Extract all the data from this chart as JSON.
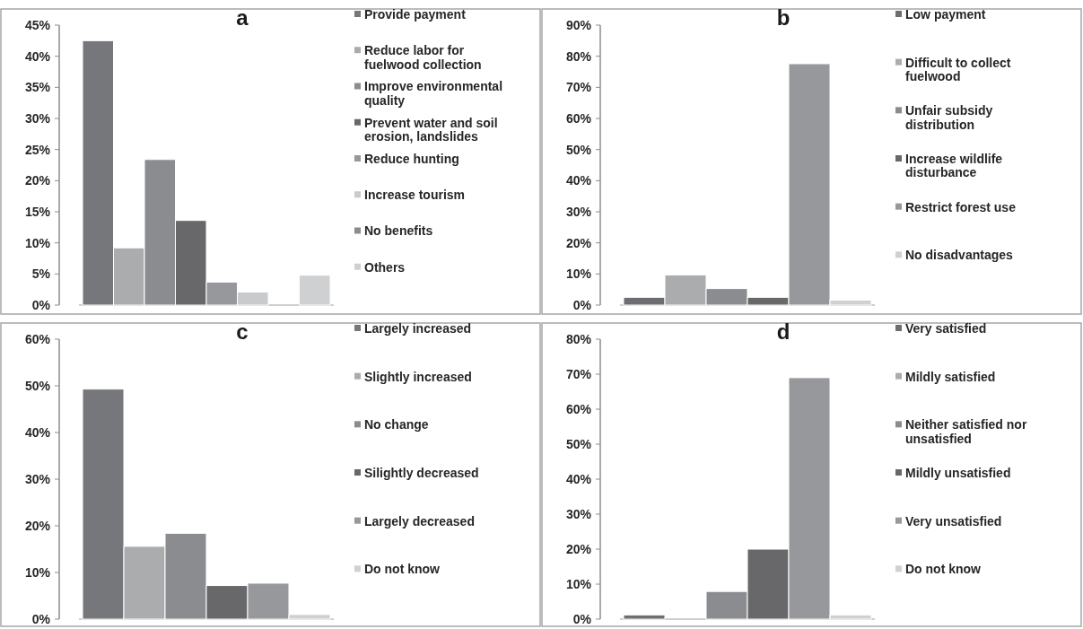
{
  "chart_data": [
    {
      "type": "bar",
      "title": "a",
      "categories": [
        null
      ],
      "legend": "right",
      "ylim": [
        0,
        45
      ],
      "yticks": [
        {
          "value": 0,
          "label": "0%"
        },
        {
          "value": 5,
          "label": "5%"
        },
        {
          "value": 10,
          "label": "10%"
        },
        {
          "value": 15,
          "label": "15%"
        },
        {
          "value": 20,
          "label": "20%"
        },
        {
          "value": 25,
          "label": "25%"
        },
        {
          "value": 30,
          "label": "30%"
        },
        {
          "value": 35,
          "label": "35%"
        },
        {
          "value": 40,
          "label": "40%"
        },
        {
          "value": 45,
          "label": "45%"
        }
      ],
      "series": [
        {
          "name": "Provide payment",
          "color": "#76777a",
          "values": [
            42.5
          ]
        },
        {
          "name": "Reduce labor for fuelwood collection",
          "color": "#abacae",
          "values": [
            9.2
          ]
        },
        {
          "name": "Improve environmental quality",
          "color": "#8b8c8f",
          "values": [
            23.4
          ]
        },
        {
          "name": "Prevent water and soil erosion, landslides",
          "color": "#68686a",
          "values": [
            13.6
          ]
        },
        {
          "name": "Reduce hunting",
          "color": "#97989b",
          "values": [
            3.7
          ]
        },
        {
          "name": "Increase tourism",
          "color": "#c9cacc",
          "values": [
            2.1
          ]
        },
        {
          "name": "No benefits",
          "color": "#8b8c8f",
          "values": [
            0
          ]
        },
        {
          "name": "Others",
          "color": "#cfd0d1",
          "values": [
            4.8
          ]
        }
      ]
    },
    {
      "type": "bar",
      "title": "b",
      "categories": [
        null
      ],
      "legend": "right",
      "ylim": [
        0,
        90
      ],
      "yticks": [
        {
          "value": 0,
          "label": "0%"
        },
        {
          "value": 10,
          "label": "10%"
        },
        {
          "value": 20,
          "label": "20%"
        },
        {
          "value": 30,
          "label": "30%"
        },
        {
          "value": 40,
          "label": "40%"
        },
        {
          "value": 50,
          "label": "50%"
        },
        {
          "value": 60,
          "label": "60%"
        },
        {
          "value": 70,
          "label": "70%"
        },
        {
          "value": 80,
          "label": "80%"
        },
        {
          "value": 90,
          "label": "90%"
        }
      ],
      "series": [
        {
          "name": "Low payment",
          "color": "#6d6e71",
          "values": [
            2.5
          ]
        },
        {
          "name": "Difficult to collect fuelwood",
          "color": "#abacae",
          "values": [
            9.7
          ]
        },
        {
          "name": "Unfair subsidy distribution",
          "color": "#8b8c8f",
          "values": [
            5.3
          ]
        },
        {
          "name": "Increase wildlife disturbance",
          "color": "#68686a",
          "values": [
            2.5
          ]
        },
        {
          "name": "Restrict forest use",
          "color": "#97989b",
          "values": [
            77.6
          ]
        },
        {
          "name": "No disadvantages",
          "color": "#cfd0d1",
          "values": [
            1.6
          ]
        }
      ]
    },
    {
      "type": "bar",
      "title": "c",
      "categories": [
        null
      ],
      "legend": "right",
      "ylim": [
        0,
        60
      ],
      "yticks": [
        {
          "value": 0,
          "label": "0%"
        },
        {
          "value": 10,
          "label": "10%"
        },
        {
          "value": 20,
          "label": "20%"
        },
        {
          "value": 30,
          "label": "30%"
        },
        {
          "value": 40,
          "label": "40%"
        },
        {
          "value": 50,
          "label": "50%"
        },
        {
          "value": 60,
          "label": "60%"
        }
      ],
      "series": [
        {
          "name": "Largely increased",
          "color": "#76777a",
          "values": [
            49.3
          ]
        },
        {
          "name": "Slightly increased",
          "color": "#abacae",
          "values": [
            15.6
          ]
        },
        {
          "name": "No change",
          "color": "#8b8c8f",
          "values": [
            18.4
          ]
        },
        {
          "name": "Silightly decreased",
          "color": "#68686a",
          "values": [
            7.2
          ]
        },
        {
          "name": "Largely decreased",
          "color": "#97989b",
          "values": [
            7.7
          ]
        },
        {
          "name": "Do not know",
          "color": "#cfd0d1",
          "values": [
            1.0
          ]
        }
      ]
    },
    {
      "type": "bar",
      "title": "d",
      "categories": [
        null
      ],
      "legend": "right",
      "ylim": [
        0,
        80
      ],
      "yticks": [
        {
          "value": 0,
          "label": "0%"
        },
        {
          "value": 10,
          "label": "10%"
        },
        {
          "value": 20,
          "label": "20%"
        },
        {
          "value": 30,
          "label": "30%"
        },
        {
          "value": 40,
          "label": "40%"
        },
        {
          "value": 50,
          "label": "50%"
        },
        {
          "value": 60,
          "label": "60%"
        },
        {
          "value": 70,
          "label": "70%"
        },
        {
          "value": 80,
          "label": "80%"
        }
      ],
      "series": [
        {
          "name": "Very satisfied",
          "color": "#6d6e71",
          "values": [
            1.2
          ]
        },
        {
          "name": "Mildly satisfied",
          "color": "#abacae",
          "values": [
            0
          ]
        },
        {
          "name": "Neither satisfied nor unsatisfied",
          "color": "#8b8c8f",
          "values": [
            7.9
          ]
        },
        {
          "name": "Mildly unsatisfied",
          "color": "#68686a",
          "values": [
            20
          ]
        },
        {
          "name": "Very unsatisfied",
          "color": "#97989b",
          "values": [
            69
          ]
        },
        {
          "name": "Do not know",
          "color": "#cfd0d1",
          "values": [
            1.2
          ]
        }
      ]
    }
  ]
}
